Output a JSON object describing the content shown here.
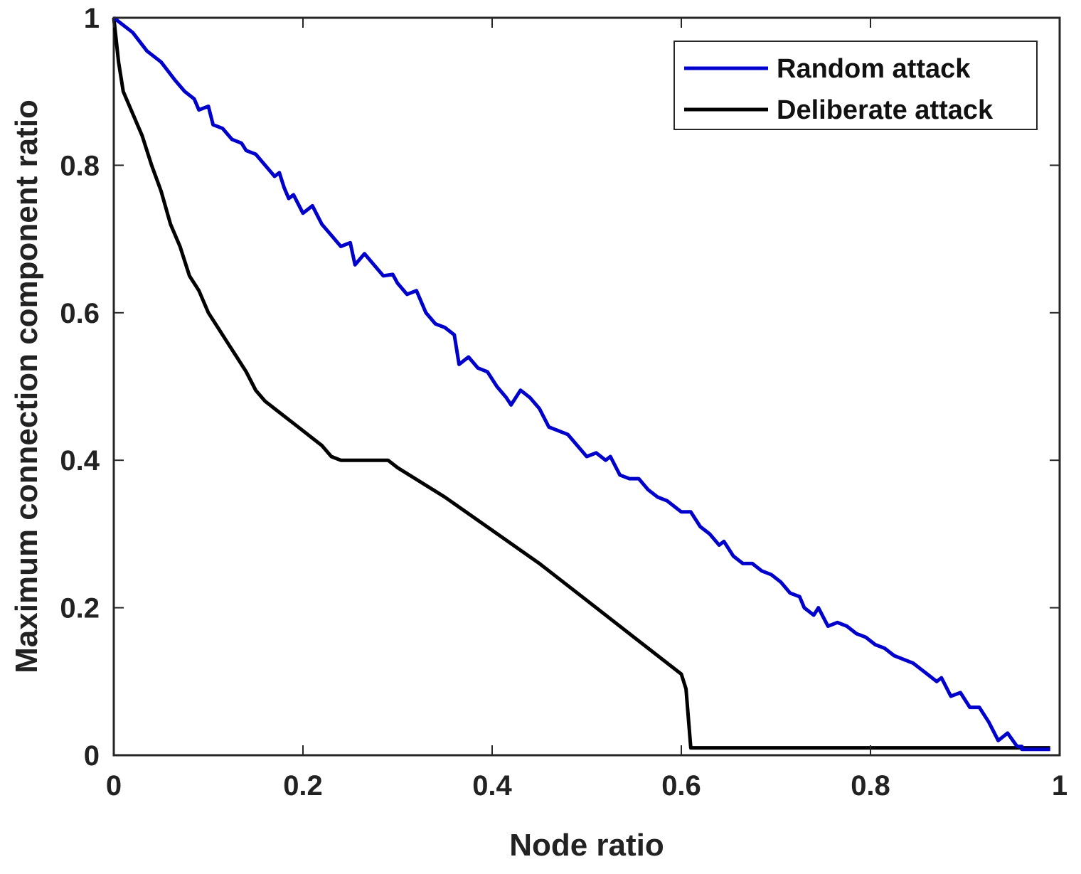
{
  "chart_data": {
    "type": "line",
    "title": "",
    "xlabel": "Node ratio",
    "ylabel": "Maximum connection component ratio",
    "xlim": [
      0,
      1
    ],
    "ylim": [
      0,
      1
    ],
    "xticks": [
      0,
      0.2,
      0.4,
      0.6,
      0.8,
      1
    ],
    "xtick_labels": [
      "0",
      "0.2",
      "0.4",
      "0.6",
      "0.8",
      "1"
    ],
    "yticks": [
      0,
      0.2,
      0.4,
      0.6,
      0.8,
      1
    ],
    "ytick_labels": [
      "0",
      "0.2",
      "0.4",
      "0.6",
      "0.8",
      "1"
    ],
    "grid": false,
    "legend_position": "top-right",
    "series": [
      {
        "name": "Random attack",
        "color": "#0000cc",
        "x": [
          0,
          0.02,
          0.035,
          0.05,
          0.065,
          0.075,
          0.085,
          0.09,
          0.1,
          0.105,
          0.115,
          0.125,
          0.135,
          0.14,
          0.15,
          0.16,
          0.17,
          0.175,
          0.18,
          0.185,
          0.19,
          0.2,
          0.21,
          0.22,
          0.23,
          0.24,
          0.25,
          0.255,
          0.265,
          0.275,
          0.285,
          0.295,
          0.3,
          0.31,
          0.32,
          0.33,
          0.34,
          0.35,
          0.36,
          0.365,
          0.375,
          0.385,
          0.395,
          0.405,
          0.415,
          0.42,
          0.43,
          0.44,
          0.45,
          0.46,
          0.47,
          0.48,
          0.49,
          0.5,
          0.51,
          0.52,
          0.525,
          0.535,
          0.545,
          0.555,
          0.565,
          0.575,
          0.585,
          0.595,
          0.6,
          0.61,
          0.62,
          0.63,
          0.64,
          0.645,
          0.655,
          0.665,
          0.675,
          0.685,
          0.695,
          0.705,
          0.715,
          0.725,
          0.73,
          0.74,
          0.745,
          0.755,
          0.765,
          0.775,
          0.785,
          0.795,
          0.805,
          0.815,
          0.825,
          0.835,
          0.845,
          0.855,
          0.86,
          0.87,
          0.875,
          0.885,
          0.895,
          0.905,
          0.915,
          0.925,
          0.935,
          0.945,
          0.955,
          0.96
        ],
        "y": [
          1.0,
          0.98,
          0.955,
          0.94,
          0.915,
          0.9,
          0.89,
          0.875,
          0.88,
          0.855,
          0.85,
          0.835,
          0.83,
          0.82,
          0.815,
          0.8,
          0.785,
          0.79,
          0.77,
          0.755,
          0.76,
          0.735,
          0.745,
          0.72,
          0.705,
          0.69,
          0.695,
          0.665,
          0.68,
          0.665,
          0.65,
          0.652,
          0.64,
          0.625,
          0.63,
          0.6,
          0.585,
          0.58,
          0.57,
          0.53,
          0.54,
          0.525,
          0.52,
          0.5,
          0.485,
          0.475,
          0.495,
          0.485,
          0.47,
          0.445,
          0.44,
          0.435,
          0.42,
          0.405,
          0.41,
          0.4,
          0.405,
          0.38,
          0.375,
          0.375,
          0.36,
          0.35,
          0.345,
          0.335,
          0.33,
          0.33,
          0.31,
          0.3,
          0.285,
          0.29,
          0.27,
          0.26,
          0.26,
          0.25,
          0.245,
          0.235,
          0.22,
          0.215,
          0.2,
          0.19,
          0.2,
          0.175,
          0.18,
          0.175,
          0.165,
          0.16,
          0.15,
          0.145,
          0.135,
          0.13,
          0.125,
          0.115,
          0.11,
          0.1,
          0.105,
          0.08,
          0.085,
          0.065,
          0.065,
          0.045,
          0.02,
          0.03,
          0.012,
          0.012
        ],
        "x_end": [
          0.96,
          0.99
        ],
        "y_end": [
          0.008,
          0.008
        ]
      },
      {
        "name": "Deliberate attack",
        "color": "#000000",
        "x": [
          0,
          0.005,
          0.01,
          0.02,
          0.03,
          0.04,
          0.05,
          0.06,
          0.07,
          0.08,
          0.09,
          0.1,
          0.11,
          0.12,
          0.13,
          0.14,
          0.15,
          0.16,
          0.17,
          0.18,
          0.19,
          0.2,
          0.21,
          0.22,
          0.23,
          0.24,
          0.25,
          0.26,
          0.27,
          0.28,
          0.29,
          0.3,
          0.35,
          0.4,
          0.45,
          0.5,
          0.55,
          0.6,
          0.605,
          0.61,
          0.7,
          0.8,
          0.9,
          0.99
        ],
        "y": [
          1.0,
          0.94,
          0.9,
          0.87,
          0.84,
          0.8,
          0.765,
          0.72,
          0.69,
          0.65,
          0.63,
          0.6,
          0.58,
          0.56,
          0.54,
          0.52,
          0.495,
          0.48,
          0.47,
          0.46,
          0.45,
          0.44,
          0.43,
          0.42,
          0.405,
          0.4,
          0.4,
          0.4,
          0.4,
          0.4,
          0.4,
          0.39,
          0.35,
          0.305,
          0.26,
          0.21,
          0.16,
          0.11,
          0.09,
          0.01,
          0.01,
          0.01,
          0.01,
          0.01
        ]
      }
    ]
  }
}
